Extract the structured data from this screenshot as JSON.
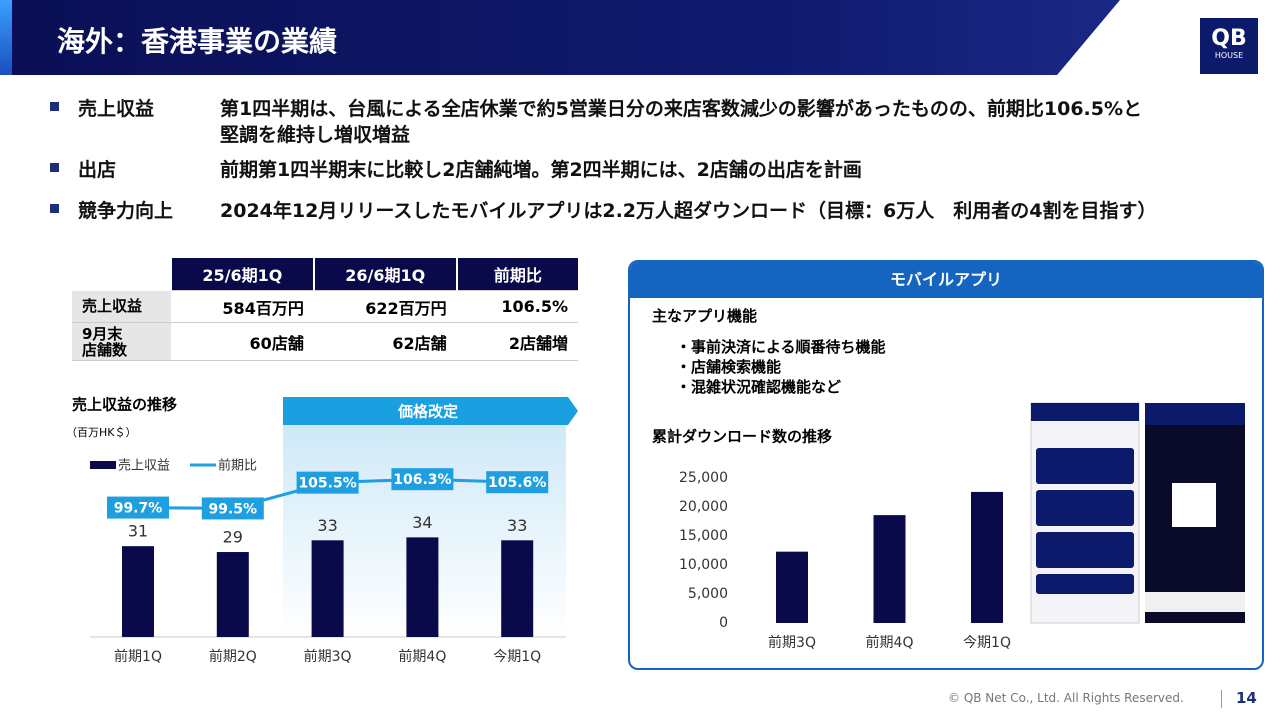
{
  "header": {
    "title": "海外：香港事業の業績",
    "logo": {
      "brand": "QB",
      "sub": "HOUSE"
    }
  },
  "bullets": [
    {
      "label": "売上収益",
      "text": [
        "第1四半期は、台風による全店休業で約5営業日分の来店客数減少の影響があったものの、前期比106.5%と",
        "堅調を維持し増収増益"
      ]
    },
    {
      "label": "出店",
      "text": [
        "前期第1四半期末に比較し2店舗純増。第2四半期には、2店舗の出店を計画"
      ]
    },
    {
      "label": "競争力向上",
      "text": [
        "2024年12月リリースしたモバイルアプリは2.2万人超ダウンロード（目標：6万人　利用者の4割を目指す）"
      ]
    }
  ],
  "table": {
    "columns": [
      "25/6期1Q",
      "26/6期1Q",
      "前期比"
    ],
    "rows": [
      {
        "label": "売上収益",
        "cells": [
          "584百万円",
          "622百万円",
          "106.5%"
        ]
      },
      {
        "label": "9月末\n店舗数",
        "cells": [
          "60店舗",
          "62店舗",
          "2店舗増"
        ]
      }
    ]
  },
  "chart_data": [
    {
      "type": "bar",
      "title": "売上収益の推移",
      "unit": "（百万HK＄）",
      "annotation": "価格改定",
      "categories": [
        "前期1Q",
        "前期2Q",
        "前期3Q",
        "前期4Q",
        "今期1Q"
      ],
      "series": [
        {
          "name": "売上収益",
          "color": "#0a0a4a",
          "values": [
            31,
            29,
            33,
            34,
            33
          ]
        },
        {
          "name": "前期比",
          "type": "line",
          "color": "#1f9fe0",
          "values": [
            99.7,
            99.5,
            105.5,
            106.3,
            105.6
          ],
          "value_labels": [
            "99.7%",
            "99.5%",
            "105.5%",
            "106.3%",
            "105.6%"
          ]
        }
      ]
    },
    {
      "type": "bar",
      "title": "累計ダウンロード数の推移",
      "categories": [
        "前期3Q",
        "前期4Q",
        "今期1Q"
      ],
      "values": [
        12300,
        18600,
        22600
      ],
      "color": "#0a0a4a",
      "ylim": [
        0,
        25000
      ],
      "yticks": [
        0,
        {
          "value": 5000,
          "label": "5,000"
        },
        {
          "value": 10000,
          "label": "10,000"
        },
        {
          "value": 15000,
          "label": "15,000"
        },
        {
          "value": 20000,
          "label": "20,000"
        },
        {
          "value": 25000,
          "label": "25,000"
        }
      ],
      "grid": false
    }
  ],
  "app_panel": {
    "title": "モバイルアプリ",
    "features_title": "主なアプリ機能",
    "features": [
      "・事前決済による順番待ち機能",
      "・店舗検索機能",
      "・混雑状況確認機能など"
    ]
  },
  "footer": {
    "copyright": "© QB Net Co., Ltd. All Rights Reserved.",
    "page": 14
  }
}
